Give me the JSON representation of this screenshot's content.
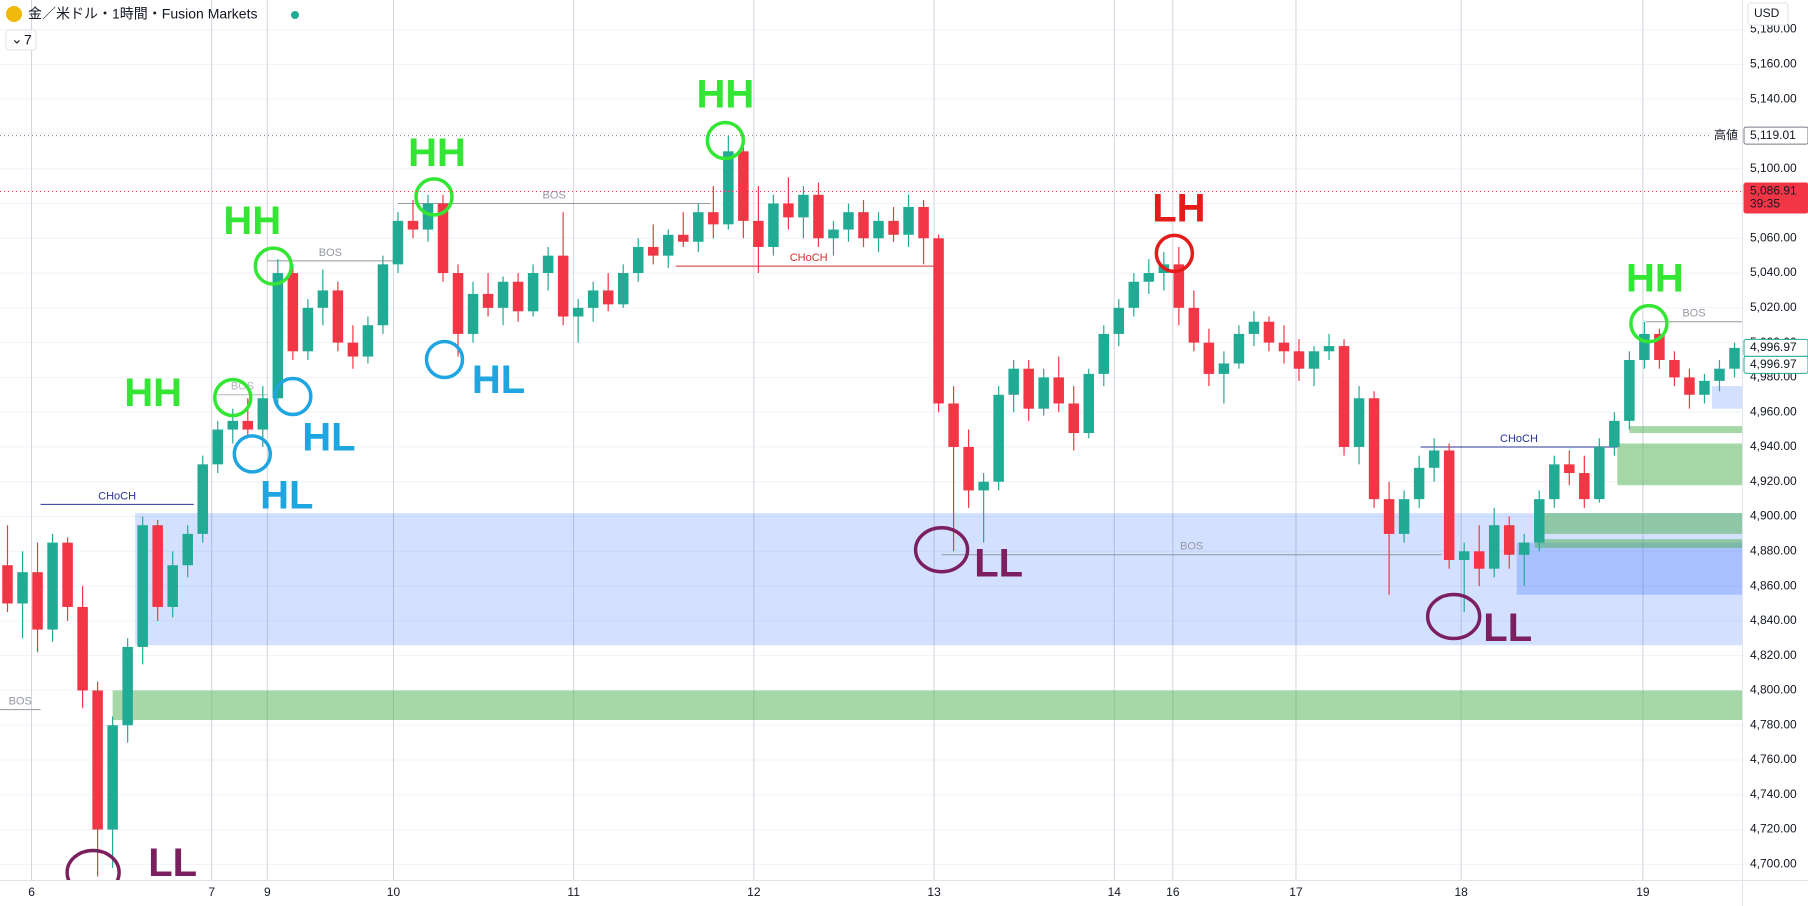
{
  "header": {
    "symbol": "金／米ドル・1時間・Fusion Markets",
    "indicator_count": "7",
    "currency": "USD"
  },
  "chart_data": {
    "type": "candlestick",
    "up_color": "#22ab94",
    "down_color": "#f23645",
    "open": [
      4872,
      4850,
      4868,
      4835,
      4885,
      4848,
      4800,
      4720,
      4780,
      4825,
      4895,
      4848,
      4872,
      4890,
      4930,
      4950,
      4955,
      4950,
      4968,
      5040,
      4995,
      5020,
      5030,
      5000,
      4992,
      5010,
      5045,
      5070,
      5065,
      5080,
      5040,
      5005,
      5028,
      5020,
      5035,
      5018,
      5040,
      5050,
      5015,
      5020,
      5030,
      5022,
      5040,
      5055,
      5050,
      5062,
      5058,
      5075,
      5068,
      5110,
      5070,
      5055,
      5080,
      5072,
      5085,
      5060,
      5065,
      5075,
      5060,
      5070,
      5062,
      5078,
      5060,
      4965,
      4940,
      4915,
      4920,
      4970,
      4985,
      4962,
      4980,
      4965,
      4948,
      4982,
      5005,
      5020,
      5035,
      5040,
      5045,
      5020,
      5000,
      4982,
      4988,
      5005,
      5012,
      5000,
      4995,
      4985,
      4995,
      4998,
      4940,
      4968,
      4910,
      4890,
      4910,
      4928,
      4938,
      4875,
      4880,
      4870,
      4895,
      4878,
      4885,
      4910,
      4930,
      4925,
      4910,
      4940,
      4955,
      4990,
      5005,
      4990,
      4980,
      4970,
      4978,
      4985
    ],
    "high": [
      4895,
      4880,
      4885,
      4890,
      4888,
      4860,
      4805,
      4785,
      4830,
      4900,
      4898,
      4880,
      4895,
      4935,
      4955,
      4962,
      4968,
      4975,
      5048,
      5045,
      5025,
      5042,
      5035,
      5010,
      5015,
      5050,
      5075,
      5082,
      5085,
      5085,
      5045,
      5035,
      5040,
      5038,
      5040,
      5045,
      5055,
      5075,
      5025,
      5035,
      5040,
      5045,
      5060,
      5068,
      5065,
      5075,
      5080,
      5090,
      5119,
      5115,
      5090,
      5085,
      5095,
      5090,
      5092,
      5070,
      5080,
      5082,
      5075,
      5078,
      5085,
      5082,
      5062,
      4975,
      4950,
      4925,
      4975,
      4990,
      4990,
      4985,
      4992,
      4975,
      4985,
      5010,
      5025,
      5040,
      5048,
      5052,
      5055,
      5030,
      5008,
      4995,
      5010,
      5018,
      5015,
      5010,
      5002,
      4998,
      5005,
      5002,
      4975,
      4972,
      4920,
      4915,
      4935,
      4945,
      4942,
      4885,
      4895,
      4905,
      4900,
      4890,
      4915,
      4935,
      4938,
      4935,
      4945,
      4960,
      4995,
      5012,
      5008,
      4995,
      4985,
      4982,
      4990,
      5000
    ],
    "low": [
      4845,
      4830,
      4822,
      4828,
      4840,
      4790,
      4693,
      4698,
      4770,
      4815,
      4840,
      4842,
      4865,
      4885,
      4925,
      4942,
      4945,
      4940,
      4965,
      4990,
      4990,
      5010,
      4995,
      4985,
      4988,
      5005,
      5040,
      5060,
      5058,
      5035,
      4992,
      5000,
      5015,
      5010,
      5012,
      5015,
      5030,
      5010,
      5000,
      5012,
      5018,
      5020,
      5035,
      5045,
      5043,
      5055,
      5052,
      5060,
      5065,
      5060,
      5040,
      5050,
      5065,
      5060,
      5055,
      5050,
      5058,
      5055,
      5052,
      5058,
      5055,
      5045,
      4960,
      4880,
      4905,
      4885,
      4915,
      4960,
      4955,
      4958,
      4960,
      4938,
      4945,
      4975,
      4998,
      5015,
      5028,
      5030,
      5010,
      4995,
      4975,
      4965,
      4985,
      4998,
      4995,
      4988,
      4978,
      4975,
      4990,
      4935,
      4930,
      4905,
      4855,
      4885,
      4905,
      4920,
      4870,
      4845,
      4860,
      4865,
      4870,
      4860,
      4880,
      4905,
      4918,
      4905,
      4908,
      4935,
      4950,
      4985,
      4985,
      4975,
      4962,
      4965,
      4972,
      4980
    ],
    "close": [
      4850,
      4868,
      4835,
      4885,
      4848,
      4800,
      4720,
      4780,
      4825,
      4895,
      4848,
      4872,
      4890,
      4930,
      4950,
      4955,
      4950,
      4968,
      5040,
      4995,
      5020,
      5030,
      5000,
      4992,
      5010,
      5045,
      5070,
      5065,
      5080,
      5040,
      5005,
      5028,
      5020,
      5035,
      5018,
      5040,
      5050,
      5015,
      5020,
      5030,
      5022,
      5040,
      5055,
      5050,
      5062,
      5058,
      5075,
      5068,
      5110,
      5070,
      5055,
      5080,
      5072,
      5085,
      5060,
      5065,
      5075,
      5060,
      5070,
      5062,
      5078,
      5060,
      4965,
      4940,
      4915,
      4920,
      4970,
      4985,
      4962,
      4980,
      4965,
      4948,
      4982,
      5005,
      5020,
      5035,
      5040,
      5045,
      5020,
      5000,
      4982,
      4988,
      5005,
      5012,
      5000,
      4995,
      4985,
      4995,
      4998,
      4940,
      4968,
      4910,
      4890,
      4910,
      4928,
      4938,
      4875,
      4880,
      4870,
      4895,
      4878,
      4885,
      4910,
      4930,
      4925,
      4910,
      4940,
      4955,
      4990,
      5005,
      4990,
      4980,
      4970,
      4978,
      4985,
      4996.97
    ],
    "xlim": [
      0,
      116
    ],
    "xticks": [
      {
        "value": 2.1,
        "label": "6"
      },
      {
        "value": 14.1,
        "label": "7"
      },
      {
        "value": 17.8,
        "label": "9"
      },
      {
        "value": 26.2,
        "label": "10"
      },
      {
        "value": 38.2,
        "label": "11"
      },
      {
        "value": 50.2,
        "label": "12"
      },
      {
        "value": 62.2,
        "label": "13"
      },
      {
        "value": 74.2,
        "label": "14"
      },
      {
        "value": 78.1,
        "label": "16"
      },
      {
        "value": 86.3,
        "label": "17"
      },
      {
        "value": 97.3,
        "label": "18"
      },
      {
        "value": 109.4,
        "label": "19"
      }
    ],
    "ylim": [
      4691,
      5197
    ],
    "yticks": [
      {
        "value": 4700,
        "label": "4,700.00"
      },
      {
        "value": 4720,
        "label": "4,720.00"
      },
      {
        "value": 4740,
        "label": "4,740.00"
      },
      {
        "value": 4760,
        "label": "4,760.00"
      },
      {
        "value": 4780,
        "label": "4,780.00"
      },
      {
        "value": 4800,
        "label": "4,800.00"
      },
      {
        "value": 4820,
        "label": "4,820.00"
      },
      {
        "value": 4840,
        "label": "4,840.00"
      },
      {
        "value": 4860,
        "label": "4,860.00"
      },
      {
        "value": 4880,
        "label": "4,880.00"
      },
      {
        "value": 4900,
        "label": "4,900.00"
      },
      {
        "value": 4920,
        "label": "4,920.00"
      },
      {
        "value": 4940,
        "label": "4,940.00"
      },
      {
        "value": 4960,
        "label": "4,960.00"
      },
      {
        "value": 4980,
        "label": "4,980.00"
      },
      {
        "value": 5000,
        "label": "5,000.00"
      },
      {
        "value": 5020,
        "label": "5,020.00"
      },
      {
        "value": 5040,
        "label": "5,040.00"
      },
      {
        "value": 5060,
        "label": "5,060.00"
      },
      {
        "value": 5080,
        "label": "5,080.00"
      },
      {
        "value": 5100,
        "label": "5,100.00"
      },
      {
        "value": 5120,
        "label": "5,120.00"
      },
      {
        "value": 5140,
        "label": "5,140.00"
      },
      {
        "value": 5160,
        "label": "5,160.00"
      },
      {
        "value": 5180,
        "label": "5,180.00"
      }
    ],
    "grid": true,
    "zones": [
      {
        "x0": 9,
        "x1": 116,
        "y0": 4826,
        "y1": 4902,
        "color": "rgba(41,98,255,0.2)"
      },
      {
        "x0": 7.5,
        "x1": 116,
        "y0": 4783,
        "y1": 4800,
        "color": "rgba(76,175,80,0.5)"
      },
      {
        "x0": 101,
        "x1": 116,
        "y0": 4855,
        "y1": 4885,
        "color": "rgba(41,98,255,0.25)"
      },
      {
        "x0": 102.7,
        "x1": 116,
        "y0": 4890,
        "y1": 4902,
        "color": "rgba(76,175,80,0.5)"
      },
      {
        "x0": 102.2,
        "x1": 116,
        "y0": 4882,
        "y1": 4887,
        "color": "rgba(76,175,80,0.5)"
      },
      {
        "x0": 107.7,
        "x1": 116,
        "y0": 4918,
        "y1": 4942,
        "color": "rgba(76,175,80,0.5)"
      },
      {
        "x0": 108.5,
        "x1": 116,
        "y0": 4948,
        "y1": 4952,
        "color": "rgba(76,175,80,0.5)"
      },
      {
        "x0": 114,
        "x1": 116,
        "y0": 4962,
        "y1": 4975,
        "color": "rgba(41,98,255,0.2)"
      }
    ],
    "structure_lines": [
      {
        "text": "BOS",
        "x0": 0,
        "x1": 2.7,
        "y": 4789,
        "color": "#9598a1"
      },
      {
        "text": "CHoCH",
        "x0": 2.7,
        "x1": 12.9,
        "y": 4907,
        "color": "#283593"
      },
      {
        "text": "BOS",
        "x0": 14.5,
        "x1": 17.8,
        "y": 4970,
        "color": "#b2b5be"
      },
      {
        "text": "BOS",
        "x0": 17.8,
        "x1": 26.2,
        "y": 5047,
        "color": "#9598a1"
      },
      {
        "text": "BOS",
        "x0": 26.5,
        "x1": 47.3,
        "y": 5080,
        "color": "#9598a1"
      },
      {
        "text": "CHoCH",
        "x0": 45,
        "x1": 62.7,
        "y": 5044,
        "color": "#d32f2f"
      },
      {
        "text": "BOS",
        "x0": 62.7,
        "x1": 96,
        "y": 4878,
        "color": "#9598a1"
      },
      {
        "text": "CHoCH",
        "x0": 94.6,
        "x1": 107.7,
        "y": 4940,
        "color": "#283593"
      },
      {
        "text": "BOS",
        "x0": 109.6,
        "x1": 116,
        "y": 5012,
        "color": "#9598a1"
      }
    ],
    "annotations": [
      {
        "text": "HH",
        "x": 48.3,
        "y": 5141.4,
        "color": "#33e633"
      },
      {
        "text": "HH",
        "x": 29.1,
        "y": 5107.6,
        "color": "#33e633"
      },
      {
        "text": "HH",
        "x": 16.8,
        "y": 5068.5,
        "color": "#33e633"
      },
      {
        "text": "HH",
        "x": 10.2,
        "y": 4969.7,
        "color": "#33e633"
      },
      {
        "text": "HL",
        "x": 21.9,
        "y": 4943.9,
        "color": "#1fa6e0"
      },
      {
        "text": "HL",
        "x": 19.1,
        "y": 4910.7,
        "color": "#1fa6e0"
      },
      {
        "text": "HL",
        "x": 33.2,
        "y": 4977,
        "color": "#1fa6e0"
      },
      {
        "text": "LL",
        "x": 11.5,
        "y": 4699.3,
        "color": "#7b1f5e"
      },
      {
        "text": "LL",
        "x": 66.5,
        "y": 4871.6,
        "color": "#7b1f5e"
      },
      {
        "text": "LL",
        "x": 100.4,
        "y": 4834.5,
        "color": "#7b1f5e"
      },
      {
        "text": "LH",
        "x": 78.5,
        "y": 5075.8,
        "color": "#e61a1a"
      },
      {
        "text": "HH",
        "x": 110.2,
        "y": 5035.4,
        "color": "#33e633"
      }
    ],
    "circles": [
      {
        "x": 48.3,
        "y": 5116.2,
        "color": "#33e633"
      },
      {
        "x": 28.9,
        "y": 5083.8,
        "color": "#33e633"
      },
      {
        "x": 18.2,
        "y": 5044,
        "color": "#33e633"
      },
      {
        "x": 15.5,
        "y": 4968.4,
        "color": "#33e633"
      },
      {
        "x": 19.5,
        "y": 4969,
        "color": "#1fa6e0"
      },
      {
        "x": 16.8,
        "y": 4936,
        "color": "#1fa6e0"
      },
      {
        "x": 29.6,
        "y": 4990.3,
        "color": "#1fa6e0"
      },
      {
        "x": 6.2,
        "y": 4695.3,
        "color": "#7b1f5e"
      },
      {
        "x": 62.7,
        "y": 4880.9,
        "color": "#7b1f5e"
      },
      {
        "x": 96.8,
        "y": 4842.5,
        "color": "#7b1f5e"
      },
      {
        "x": 78.2,
        "y": 5051.3,
        "color": "#e61a1a"
      },
      {
        "x": 109.8,
        "y": 5010.9,
        "color": "#33e633"
      }
    ],
    "price_lines": [
      {
        "value": 5119.01,
        "label": "5,119.01",
        "tag": "高値",
        "color": "#787b86",
        "line": "dotted",
        "filled": false
      },
      {
        "value": 5086.91,
        "label": "5,086.91",
        "countdown": "39:35",
        "color": "#f23645",
        "line": "dotted",
        "filled": true
      },
      {
        "value": 4996.97,
        "label": "4,996.97",
        "color": "#22ab94",
        "filled": false
      },
      {
        "value": 4996.97,
        "label": "4,996.97",
        "color": "#22ab94",
        "filled": false
      }
    ]
  }
}
